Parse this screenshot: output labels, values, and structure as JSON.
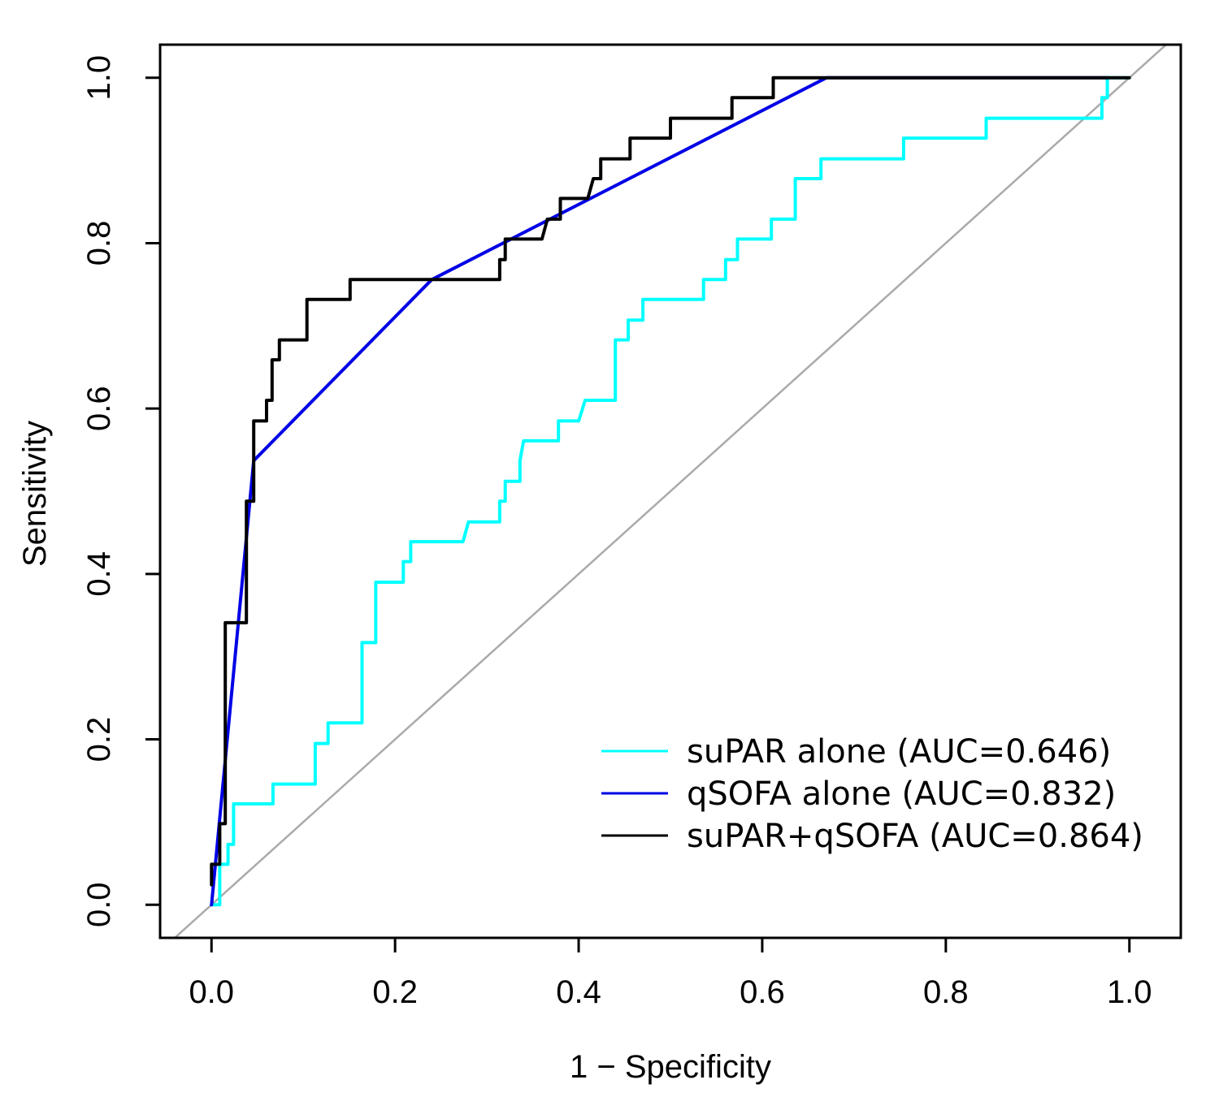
{
  "chart_data": {
    "type": "line",
    "xlabel": "1 − Specificity",
    "ylabel": "Sensitivity",
    "xlim": [
      -0.056,
      1.056
    ],
    "ylim": [
      -0.04,
      1.04
    ],
    "xticks": [
      "0.0",
      "0.2",
      "0.4",
      "0.6",
      "0.8",
      "1.0"
    ],
    "yticks": [
      "0.0",
      "0.2",
      "0.4",
      "0.6",
      "0.8",
      "1.0"
    ],
    "reference_line": "diagonal",
    "reference_color": "#aaaaaa",
    "legend_position": "bottom-right",
    "series": [
      {
        "name": "suPAR alone (AUC=0.646)",
        "color": "#00ffff",
        "points": [
          [
            0,
            0
          ],
          [
            0.009,
            0
          ],
          [
            0.009,
            0.049
          ],
          [
            0.018,
            0.049
          ],
          [
            0.018,
            0.073
          ],
          [
            0.024,
            0.073
          ],
          [
            0.024,
            0.122
          ],
          [
            0.067,
            0.122
          ],
          [
            0.067,
            0.146
          ],
          [
            0.113,
            0.146
          ],
          [
            0.113,
            0.195
          ],
          [
            0.127,
            0.195
          ],
          [
            0.127,
            0.22
          ],
          [
            0.164,
            0.22
          ],
          [
            0.164,
            0.317
          ],
          [
            0.179,
            0.317
          ],
          [
            0.179,
            0.39
          ],
          [
            0.209,
            0.39
          ],
          [
            0.209,
            0.415
          ],
          [
            0.217,
            0.415
          ],
          [
            0.217,
            0.439
          ],
          [
            0.274,
            0.439
          ],
          [
            0.28,
            0.463
          ],
          [
            0.314,
            0.463
          ],
          [
            0.314,
            0.488
          ],
          [
            0.32,
            0.488
          ],
          [
            0.32,
            0.512
          ],
          [
            0.336,
            0.512
          ],
          [
            0.336,
            0.537
          ],
          [
            0.34,
            0.561
          ],
          [
            0.378,
            0.561
          ],
          [
            0.378,
            0.585
          ],
          [
            0.4,
            0.585
          ],
          [
            0.407,
            0.61
          ],
          [
            0.44,
            0.61
          ],
          [
            0.44,
            0.683
          ],
          [
            0.454,
            0.683
          ],
          [
            0.454,
            0.707
          ],
          [
            0.47,
            0.707
          ],
          [
            0.47,
            0.732
          ],
          [
            0.536,
            0.732
          ],
          [
            0.536,
            0.756
          ],
          [
            0.56,
            0.756
          ],
          [
            0.56,
            0.78
          ],
          [
            0.573,
            0.78
          ],
          [
            0.573,
            0.805
          ],
          [
            0.61,
            0.805
          ],
          [
            0.61,
            0.829
          ],
          [
            0.636,
            0.829
          ],
          [
            0.636,
            0.878
          ],
          [
            0.664,
            0.878
          ],
          [
            0.664,
            0.902
          ],
          [
            0.754,
            0.902
          ],
          [
            0.754,
            0.927
          ],
          [
            0.844,
            0.927
          ],
          [
            0.844,
            0.951
          ],
          [
            0.97,
            0.951
          ],
          [
            0.97,
            0.976
          ],
          [
            0.976,
            0.976
          ],
          [
            0.976,
            1.0
          ],
          [
            1.0,
            1.0
          ]
        ]
      },
      {
        "name": "qSOFA alone (AUC=0.832)",
        "color": "#0000e6",
        "points": [
          [
            0,
            0
          ],
          [
            0.046,
            0.537
          ],
          [
            0.24,
            0.756
          ],
          [
            0.67,
            1.0
          ],
          [
            0.976,
            1.0
          ]
        ]
      },
      {
        "name": "suPAR+qSOFA (AUC=0.864)",
        "color": "#000000",
        "points": [
          [
            0,
            0.024
          ],
          [
            0,
            0.049
          ],
          [
            0.009,
            0.049
          ],
          [
            0.009,
            0.098
          ],
          [
            0.015,
            0.098
          ],
          [
            0.015,
            0.122
          ],
          [
            0.015,
            0.341
          ],
          [
            0.038,
            0.341
          ],
          [
            0.038,
            0.488
          ],
          [
            0.046,
            0.488
          ],
          [
            0.046,
            0.585
          ],
          [
            0.06,
            0.585
          ],
          [
            0.06,
            0.61
          ],
          [
            0.066,
            0.61
          ],
          [
            0.066,
            0.659
          ],
          [
            0.074,
            0.659
          ],
          [
            0.074,
            0.683
          ],
          [
            0.104,
            0.683
          ],
          [
            0.104,
            0.732
          ],
          [
            0.151,
            0.732
          ],
          [
            0.151,
            0.756
          ],
          [
            0.314,
            0.756
          ],
          [
            0.314,
            0.78
          ],
          [
            0.32,
            0.78
          ],
          [
            0.32,
            0.805
          ],
          [
            0.36,
            0.805
          ],
          [
            0.366,
            0.829
          ],
          [
            0.38,
            0.829
          ],
          [
            0.38,
            0.854
          ],
          [
            0.41,
            0.854
          ],
          [
            0.416,
            0.878
          ],
          [
            0.424,
            0.878
          ],
          [
            0.424,
            0.902
          ],
          [
            0.456,
            0.902
          ],
          [
            0.456,
            0.927
          ],
          [
            0.5,
            0.927
          ],
          [
            0.5,
            0.951
          ],
          [
            0.567,
            0.951
          ],
          [
            0.567,
            0.976
          ],
          [
            0.612,
            0.976
          ],
          [
            0.612,
            1.0
          ],
          [
            1.0,
            1.0
          ]
        ]
      }
    ]
  }
}
